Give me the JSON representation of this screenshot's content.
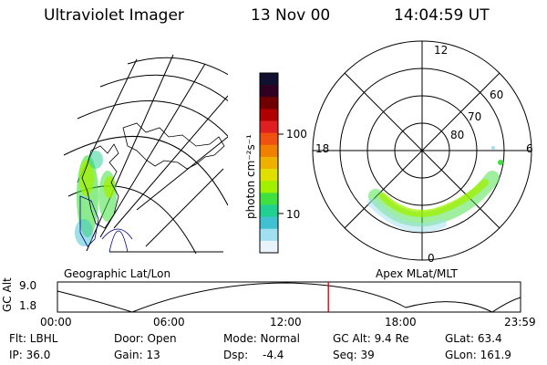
{
  "header": {
    "instrument": "Ultraviolet Imager",
    "date": "13 Nov 00",
    "time": "14:04:59 UT"
  },
  "left_panel": {
    "caption": "Geographic Lat/Lon"
  },
  "right_panel": {
    "caption": "Apex MLat/MLT",
    "mlt_labels": [
      "12",
      "18",
      "6",
      "0"
    ],
    "mlat_labels": [
      "60",
      "70",
      "80"
    ]
  },
  "colorbar": {
    "unit_label": "photon cm⁻²s⁻¹",
    "tick_labels": [
      "100",
      "10"
    ],
    "colors": [
      "#101030",
      "#300020",
      "#700000",
      "#b00000",
      "#e02020",
      "#f05010",
      "#f08000",
      "#f0b000",
      "#e0e000",
      "#a0f000",
      "#40e040",
      "#20d090",
      "#40c0d0",
      "#a0e0f0",
      "#e8f4fa"
    ]
  },
  "orbit_plot": {
    "ylabel": "GC Alt",
    "y_ticks": [
      "9.0",
      "1.8"
    ],
    "x_ticks": [
      "00:00",
      "06:00",
      "12:00",
      "18:00",
      "23:59"
    ],
    "current_time_fraction": 0.585,
    "marker_color": "#c00000"
  },
  "info": {
    "flt": "Flt: LBHL",
    "door": "Door: Open",
    "mode": "Mode: Normal",
    "gc_alt": "GC Alt: 9.4 Re",
    "glat": "GLat: 63.4",
    "ip": "IP: 36.0",
    "gain": "Gain: 13",
    "dsp_label": "Dsp:",
    "dsp_value": "-4.4",
    "seq": "Seq: 39",
    "glon": "GLon: 161.9"
  }
}
